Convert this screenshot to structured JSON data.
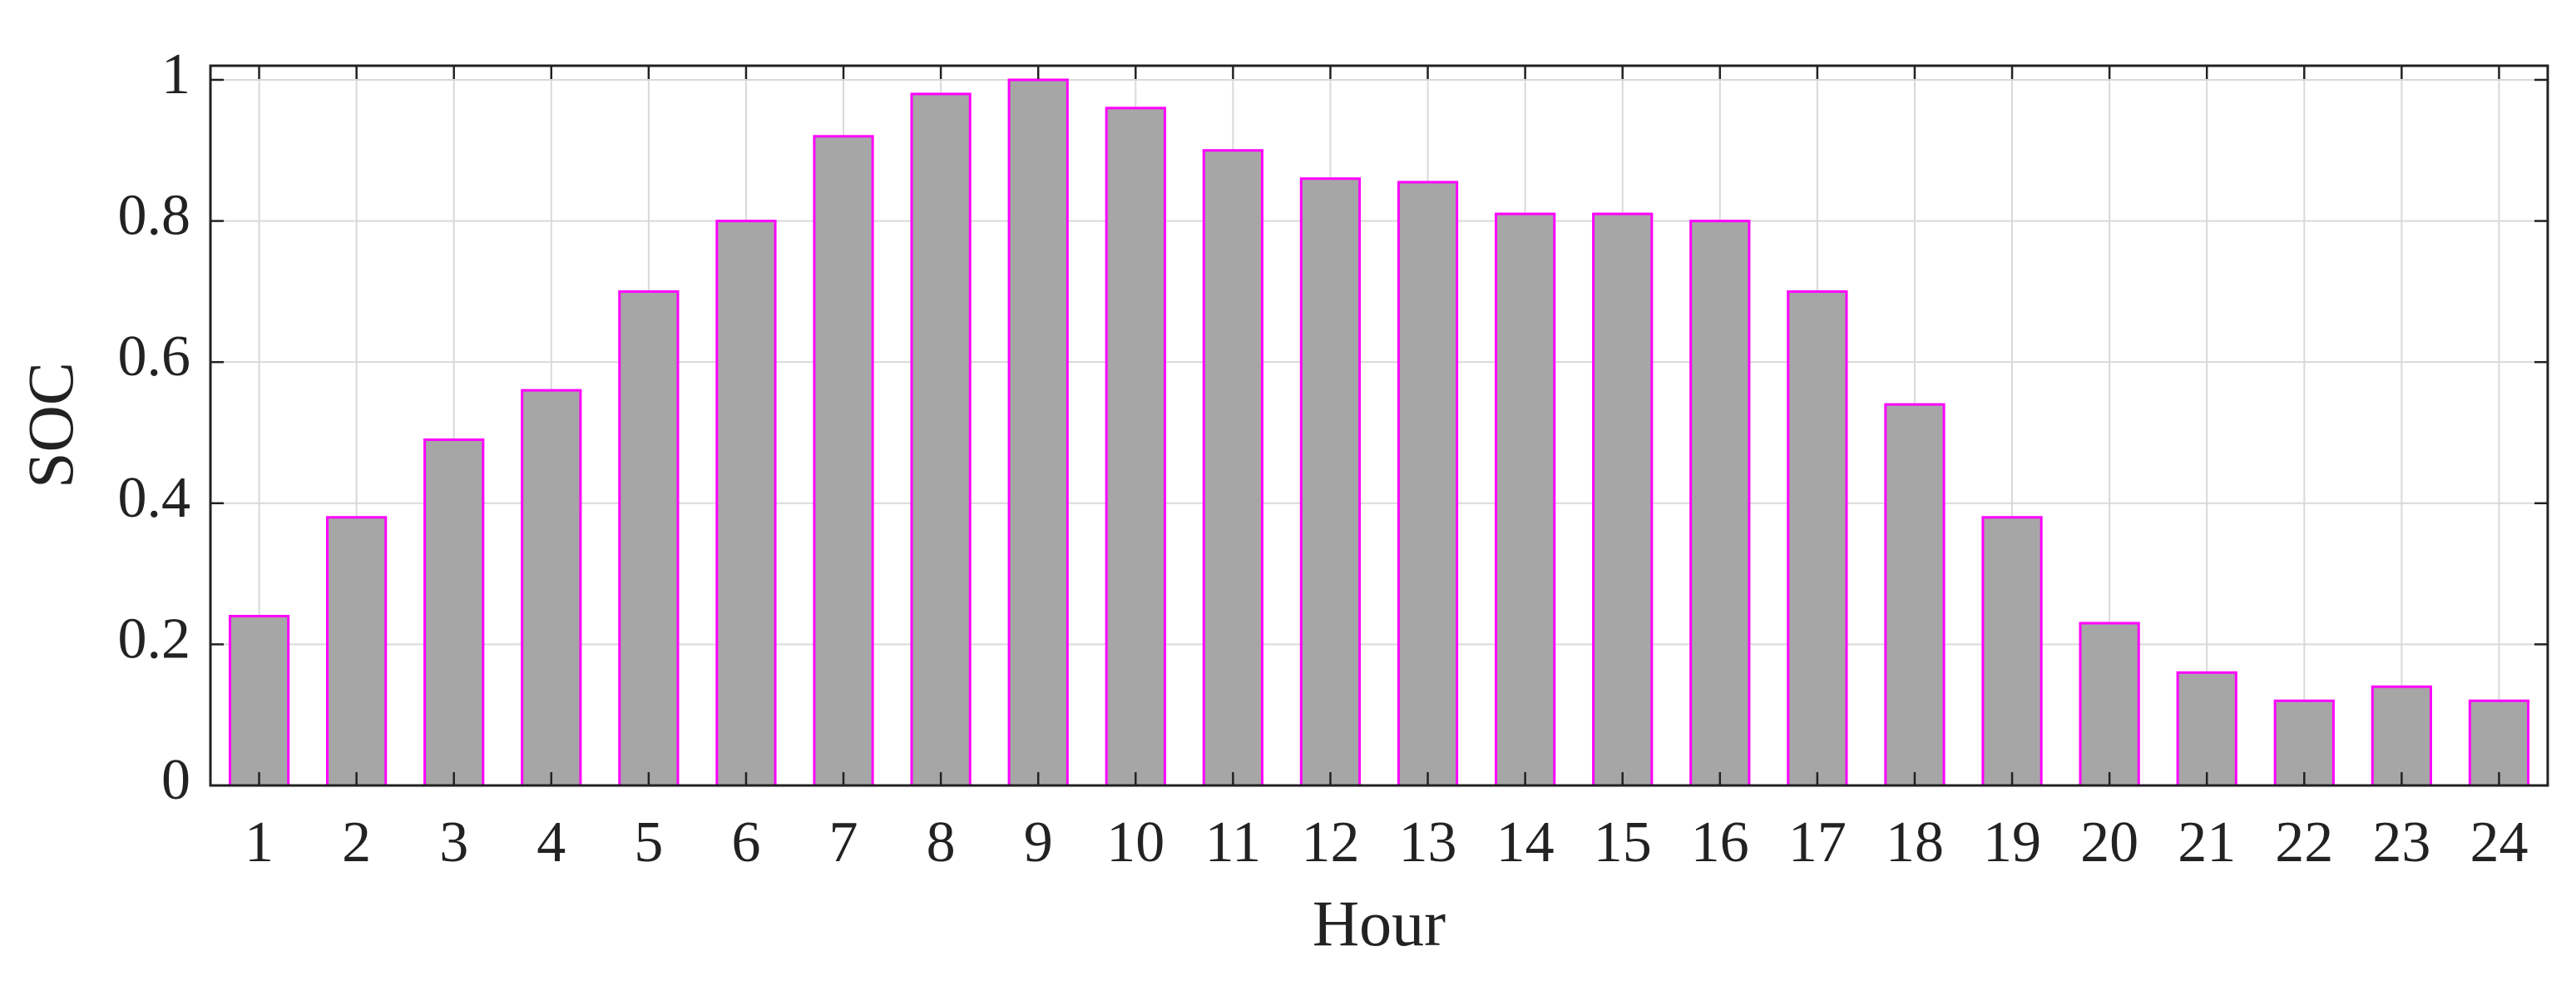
{
  "chart_data": {
    "type": "bar",
    "x_label": "Hour",
    "y_label": "SOC",
    "categories": [
      "1",
      "2",
      "3",
      "4",
      "5",
      "6",
      "7",
      "8",
      "9",
      "10",
      "11",
      "12",
      "13",
      "14",
      "15",
      "16",
      "17",
      "18",
      "19",
      "20",
      "21",
      "22",
      "23",
      "24"
    ],
    "values": [
      0.24,
      0.38,
      0.49,
      0.56,
      0.7,
      0.8,
      0.92,
      0.98,
      1.0,
      0.96,
      0.9,
      0.86,
      0.855,
      0.81,
      0.81,
      0.8,
      0.7,
      0.54,
      0.38,
      0.23,
      0.16,
      0.12,
      0.14,
      0.12
    ],
    "color": "#a6a6a6",
    "edge_color": "#ff00ff",
    "ylim": [
      0,
      1.02
    ],
    "yticks": [
      0,
      0.2,
      0.4,
      0.6,
      0.8,
      1
    ],
    "grid": true
  }
}
